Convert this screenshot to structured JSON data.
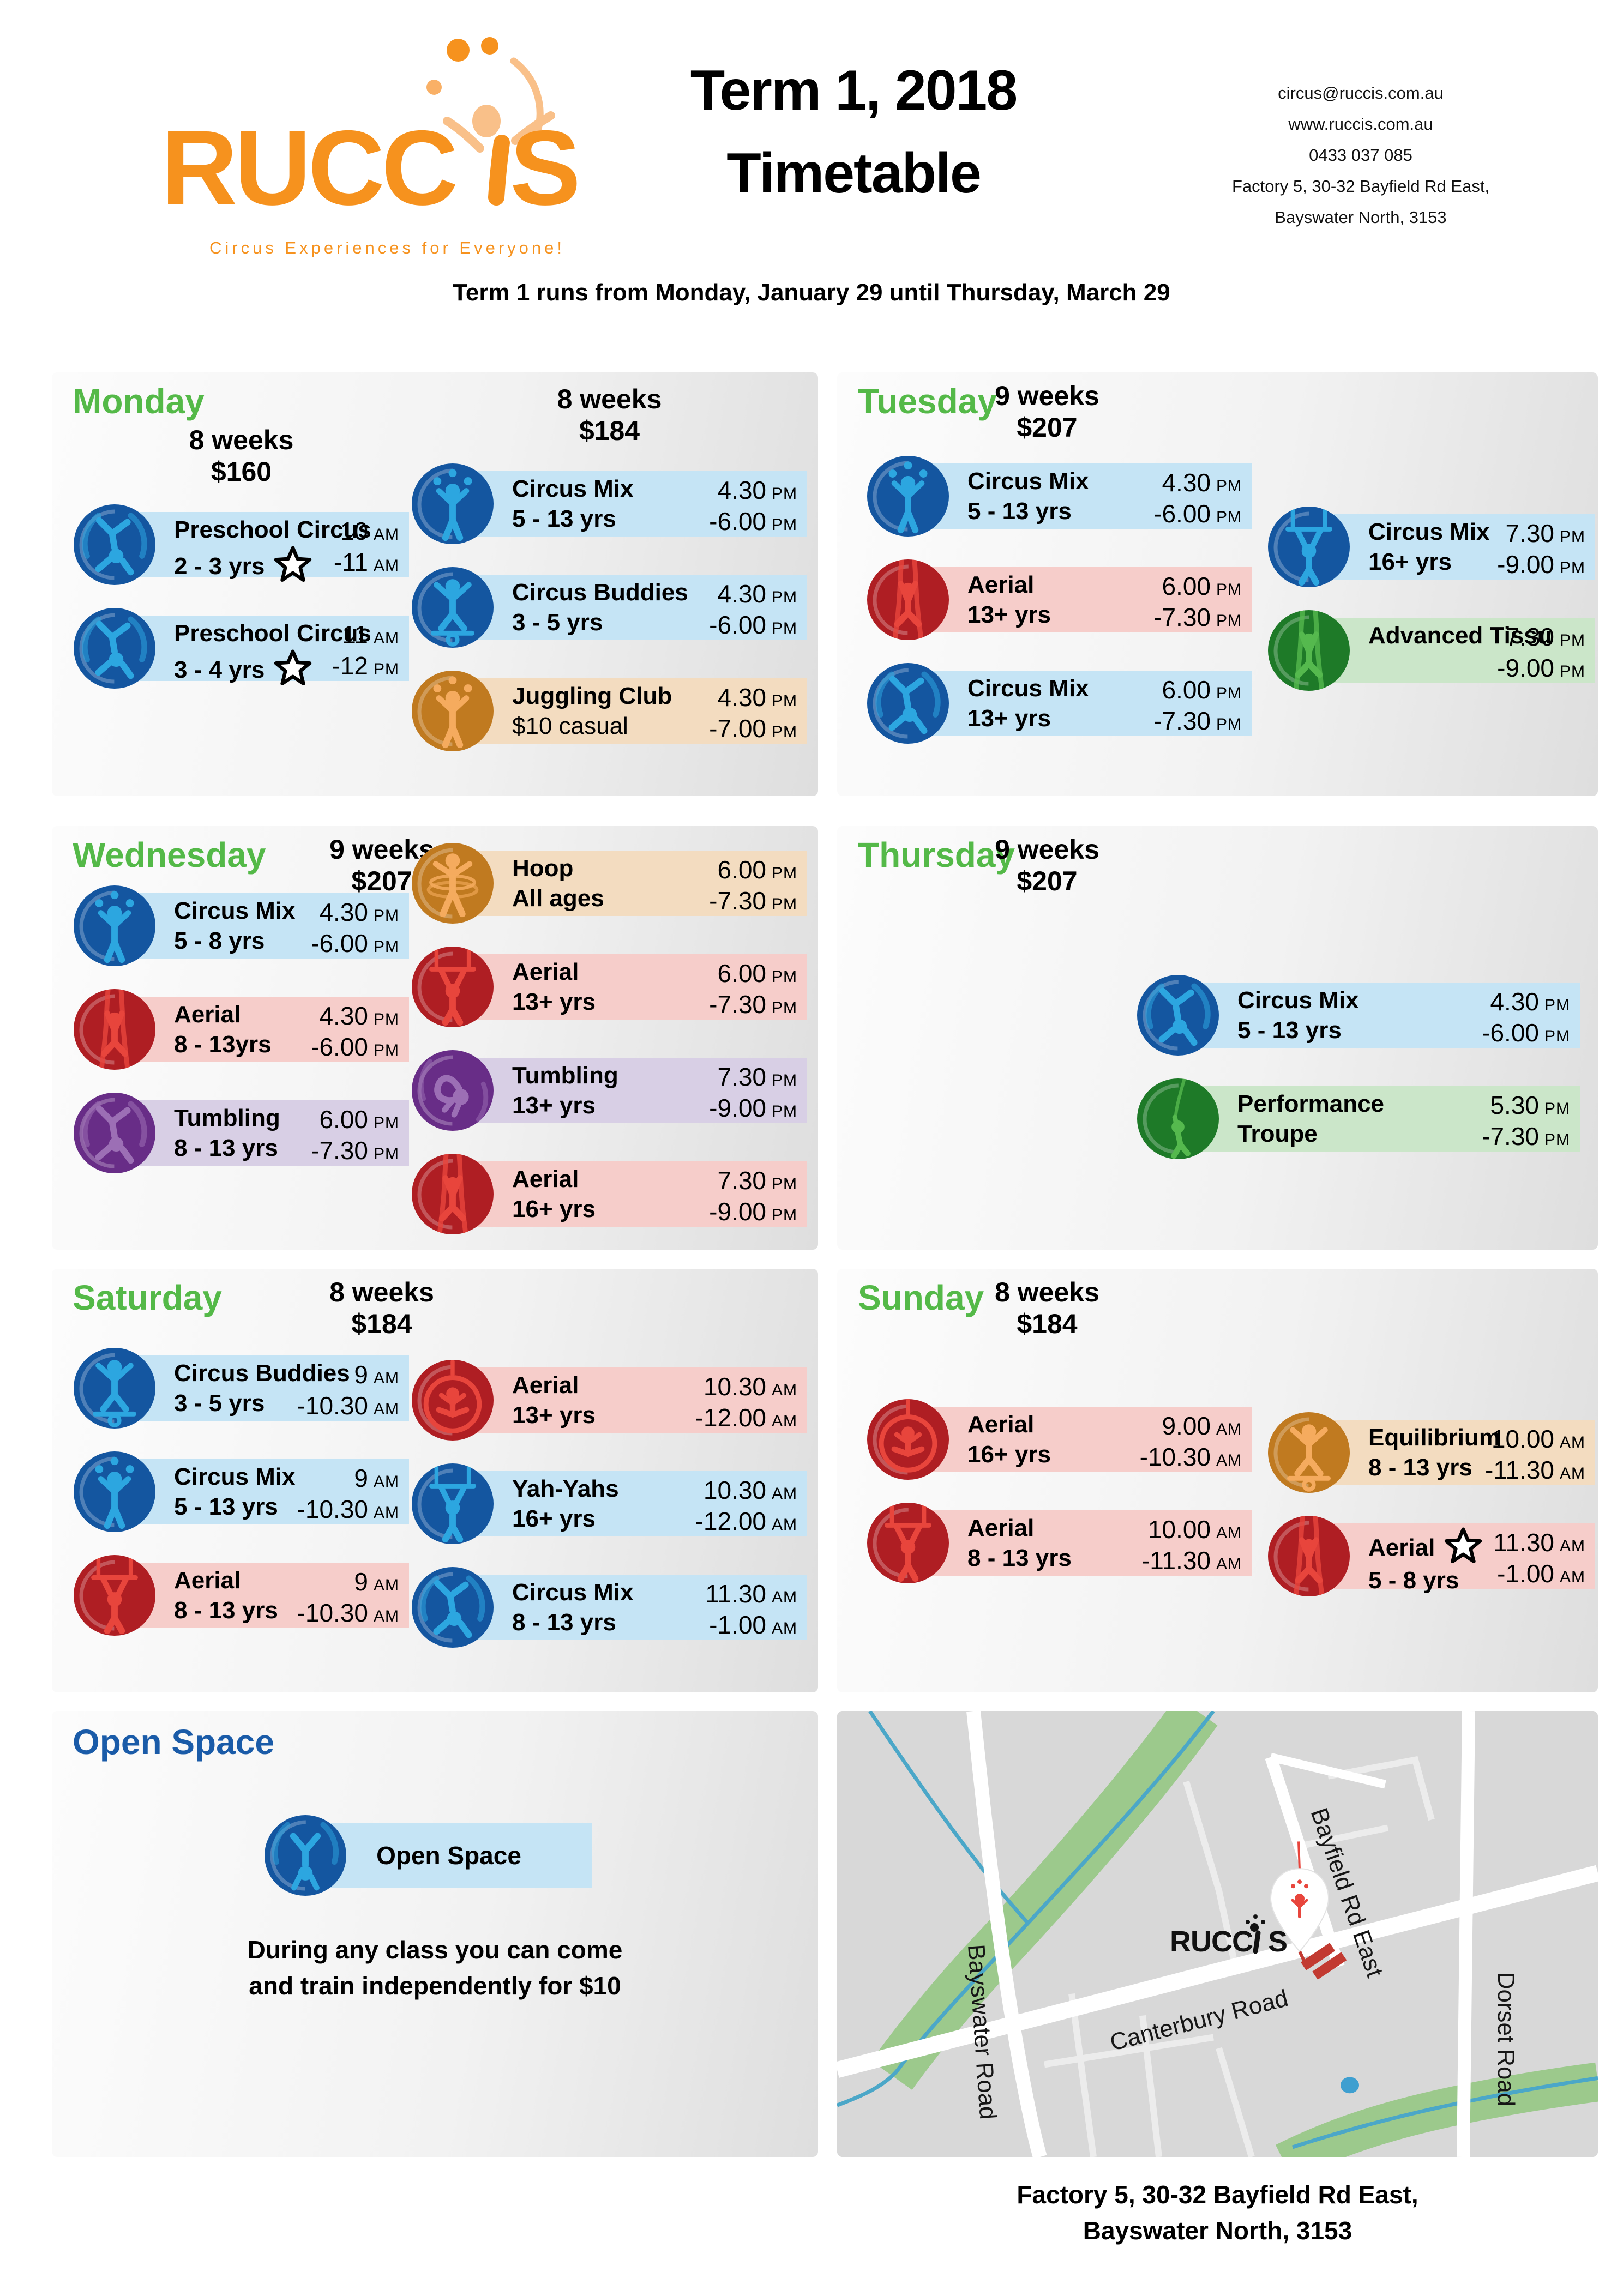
{
  "header": {
    "logo_text_left": "RUCC",
    "logo_text_right": "S",
    "logo_full": "RUCCIS",
    "tagline": "Circus Experiences for Everyone!",
    "title_line1": "Term 1, 2018",
    "title_line2": "Timetable",
    "contact_lines": [
      "circus@ruccis.com.au",
      "www.ruccis.com.au",
      "0433 037 085",
      "Factory 5, 30-32 Bayfield Rd East,",
      "Bayswater North, 3153"
    ],
    "subtitle": "Term 1 runs from Monday, January 29 until Thursday, March 29"
  },
  "days": [
    {
      "name": "Monday",
      "columns": [
        {
          "header": {
            "duration": "8 weeks",
            "price": "$160"
          },
          "classes": [
            {
              "icon": "cartwheel-icon",
              "theme": "blue",
              "title": "Preschool Circus",
              "subtitle": "2 - 3 yrs",
              "star": "subtitle",
              "times": [
                {
                  "t": "10",
                  "ap": "AM"
                },
                {
                  "t": "-11",
                  "ap": "AM"
                }
              ]
            },
            {
              "icon": "cartwheel-icon",
              "theme": "blue",
              "title": "Preschool Circus",
              "subtitle": "3 - 4 yrs",
              "star": "subtitle",
              "times": [
                {
                  "t": "11",
                  "ap": "AM"
                },
                {
                  "t": "-12",
                  "ap": "PM"
                }
              ]
            }
          ]
        },
        {
          "header": {
            "duration": "8 weeks",
            "price": "$184"
          },
          "classes": [
            {
              "icon": "juggler-icon",
              "theme": "blue",
              "title": "Circus Mix",
              "subtitle": "5 - 13 yrs",
              "times": [
                {
                  "t": "4.30",
                  "ap": "PM"
                },
                {
                  "t": "-6.00",
                  "ap": "PM"
                }
              ]
            },
            {
              "icon": "balance-icon",
              "theme": "blue",
              "title": "Circus Buddies",
              "subtitle": "3 - 5 yrs",
              "times": [
                {
                  "t": "4.30",
                  "ap": "PM"
                },
                {
                  "t": "-6.00",
                  "ap": "PM"
                }
              ]
            },
            {
              "icon": "juggler-icon",
              "theme": "orange",
              "title": "Juggling Club",
              "subtitle": "$10 casual",
              "sub_light": true,
              "times": [
                {
                  "t": "4.30",
                  "ap": "PM"
                },
                {
                  "t": "-7.00",
                  "ap": "PM"
                }
              ]
            }
          ]
        }
      ]
    },
    {
      "name": "Tuesday",
      "header": {
        "duration": "9 weeks",
        "price": "$207"
      },
      "columns": [
        {
          "classes": [
            {
              "icon": "juggler-icon",
              "theme": "blue",
              "title": "Circus Mix",
              "subtitle": "5 - 13 yrs",
              "times": [
                {
                  "t": "4.30",
                  "ap": "PM"
                },
                {
                  "t": "-6.00",
                  "ap": "PM"
                }
              ]
            },
            {
              "icon": "silks-icon",
              "theme": "red",
              "title": "Aerial",
              "subtitle": "13+ yrs",
              "times": [
                {
                  "t": "6.00",
                  "ap": "PM"
                },
                {
                  "t": "-7.30",
                  "ap": "PM"
                }
              ]
            },
            {
              "icon": "cartwheel-icon",
              "theme": "blue",
              "title": "Circus Mix",
              "subtitle": "13+ yrs",
              "times": [
                {
                  "t": "6.00",
                  "ap": "PM"
                },
                {
                  "t": "-7.30",
                  "ap": "PM"
                }
              ]
            }
          ]
        },
        {
          "classes": [
            {
              "icon": "trapeze-icon",
              "theme": "blue",
              "title": "Circus Mix",
              "subtitle": "16+ yrs",
              "times": [
                {
                  "t": "7.30",
                  "ap": "PM"
                },
                {
                  "t": "-9.00",
                  "ap": "PM"
                }
              ]
            },
            {
              "icon": "silks-icon",
              "theme": "green",
              "title": "Advanced Tissu",
              "times": [
                {
                  "t": "7.30",
                  "ap": "PM"
                },
                {
                  "t": "-9.00",
                  "ap": "PM"
                }
              ]
            }
          ]
        }
      ]
    },
    {
      "name": "Wednesday",
      "header": {
        "duration": "9 weeks",
        "price": "$207"
      },
      "columns": [
        {
          "classes": [
            {
              "icon": "juggler-icon",
              "theme": "blue",
              "title": "Circus Mix",
              "subtitle": "5 - 8 yrs",
              "times": [
                {
                  "t": "4.30",
                  "ap": "PM"
                },
                {
                  "t": "-6.00",
                  "ap": "PM"
                }
              ]
            },
            {
              "icon": "silks-icon",
              "theme": "red",
              "title": "Aerial",
              "subtitle": "8 - 13yrs",
              "times": [
                {
                  "t": "4.30",
                  "ap": "PM"
                },
                {
                  "t": "-6.00",
                  "ap": "PM"
                }
              ]
            },
            {
              "icon": "cartwheel-icon",
              "theme": "purple",
              "title": "Tumbling",
              "subtitle": "8 - 13 yrs",
              "times": [
                {
                  "t": "6.00",
                  "ap": "PM"
                },
                {
                  "t": "-7.30",
                  "ap": "PM"
                }
              ]
            }
          ]
        },
        {
          "classes": [
            {
              "icon": "hoop-icon",
              "theme": "orange",
              "title": "Hoop",
              "subtitle": "All ages",
              "times": [
                {
                  "t": "6.00",
                  "ap": "PM"
                },
                {
                  "t": "-7.30",
                  "ap": "PM"
                }
              ]
            },
            {
              "icon": "trapeze-icon",
              "theme": "red",
              "title": "Aerial",
              "subtitle": "13+ yrs",
              "times": [
                {
                  "t": "6.00",
                  "ap": "PM"
                },
                {
                  "t": "-7.30",
                  "ap": "PM"
                }
              ]
            },
            {
              "icon": "tumble-icon",
              "theme": "purple",
              "title": "Tumbling",
              "subtitle": "13+ yrs",
              "times": [
                {
                  "t": "7.30",
                  "ap": "PM"
                },
                {
                  "t": "-9.00",
                  "ap": "PM"
                }
              ]
            },
            {
              "icon": "silks-icon",
              "theme": "red",
              "title": "Aerial",
              "subtitle": "16+ yrs",
              "times": [
                {
                  "t": "7.30",
                  "ap": "PM"
                },
                {
                  "t": "-9.00",
                  "ap": "PM"
                }
              ]
            }
          ]
        }
      ]
    },
    {
      "name": "Thursday",
      "header": {
        "duration": "9 weeks",
        "price": "$207"
      },
      "columns": [
        {
          "classes": [
            {
              "icon": "cartwheel-icon",
              "theme": "blue",
              "title": "Circus Mix",
              "subtitle": "5 - 13 yrs",
              "times": [
                {
                  "t": "4.30",
                  "ap": "PM"
                },
                {
                  "t": "-6.00",
                  "ap": "PM"
                }
              ]
            },
            {
              "icon": "rope-swing-icon",
              "theme": "green",
              "title": "Performance",
              "subtitle": "Troupe",
              "times": [
                {
                  "t": "5.30",
                  "ap": "PM"
                },
                {
                  "t": "-7.30",
                  "ap": "PM"
                }
              ]
            }
          ]
        }
      ]
    },
    {
      "name": "Saturday",
      "header": {
        "duration": "8 weeks",
        "price": "$184"
      },
      "columns": [
        {
          "classes": [
            {
              "icon": "balance-icon",
              "theme": "blue",
              "title": "Circus Buddies",
              "subtitle": "3 - 5 yrs",
              "times": [
                {
                  "t": "9",
                  "ap": "AM"
                },
                {
                  "t": "-10.30",
                  "ap": "AM"
                }
              ]
            },
            {
              "icon": "juggler-icon",
              "theme": "blue",
              "title": "Circus Mix",
              "subtitle": "5 - 13 yrs",
              "times": [
                {
                  "t": "9",
                  "ap": "AM"
                },
                {
                  "t": "-10.30",
                  "ap": "AM"
                }
              ]
            },
            {
              "icon": "trapeze-icon",
              "theme": "red",
              "title": "Aerial",
              "subtitle": "8 - 13 yrs",
              "times": [
                {
                  "t": "9",
                  "ap": "AM"
                },
                {
                  "t": "-10.30",
                  "ap": "AM"
                }
              ]
            }
          ]
        },
        {
          "classes": [
            {
              "icon": "lyra-icon",
              "theme": "red",
              "title": "Aerial",
              "subtitle": "13+ yrs",
              "times": [
                {
                  "t": "10.30",
                  "ap": "AM"
                },
                {
                  "t": "-12.00",
                  "ap": "AM"
                }
              ]
            },
            {
              "icon": "trapeze-icon",
              "theme": "blue",
              "title": "Yah-Yahs",
              "subtitle": "16+ yrs",
              "times": [
                {
                  "t": "10.30",
                  "ap": "AM"
                },
                {
                  "t": "-12.00",
                  "ap": "AM"
                }
              ]
            },
            {
              "icon": "cartwheel-icon",
              "theme": "blue",
              "title": "Circus Mix",
              "subtitle": "8 - 13 yrs",
              "times": [
                {
                  "t": "11.30",
                  "ap": "AM"
                },
                {
                  "t": "-1.00",
                  "ap": "AM"
                }
              ]
            }
          ]
        }
      ]
    },
    {
      "name": "Sunday",
      "header": {
        "duration": "8 weeks",
        "price": "$184"
      },
      "columns": [
        {
          "classes": [
            {
              "icon": "lyra-icon",
              "theme": "red",
              "title": "Aerial",
              "subtitle": "16+ yrs",
              "times": [
                {
                  "t": "9.00",
                  "ap": "AM"
                },
                {
                  "t": "-10.30",
                  "ap": "AM"
                }
              ]
            },
            {
              "icon": "trapeze-icon",
              "theme": "red",
              "title": "Aerial",
              "subtitle": "8 - 13 yrs",
              "times": [
                {
                  "t": "10.00",
                  "ap": "AM"
                },
                {
                  "t": "-11.30",
                  "ap": "AM"
                }
              ]
            }
          ]
        },
        {
          "classes": [
            {
              "icon": "balance-icon",
              "theme": "orange",
              "title": "Equilibrium",
              "subtitle": "8 - 13 yrs",
              "times": [
                {
                  "t": "10.00",
                  "ap": "AM"
                },
                {
                  "t": "-11.30",
                  "ap": "AM"
                }
              ]
            },
            {
              "icon": "silks-icon",
              "theme": "red",
              "title": "Aerial",
              "subtitle": "5 - 8 yrs",
              "star": "title",
              "times": [
                {
                  "t": "11.30",
                  "ap": "AM"
                },
                {
                  "t": "-1.00",
                  "ap": "AM"
                }
              ]
            }
          ]
        }
      ]
    }
  ],
  "open_space": {
    "title": "Open Space",
    "label": "Open Space",
    "desc_line1": "During any class you can come",
    "desc_line2": "and train independently for $10"
  },
  "map": {
    "roads": [
      "Bayswater Road",
      "Canterbury Road",
      "Dorset Road",
      "Bayfield Rd East"
    ],
    "logo_left": "RUCC",
    "logo_right": "S"
  },
  "footer": {
    "line1": "Factory 5, 30-32 Bayfield Rd East,",
    "line2": "Bayswater North, 3153"
  },
  "palette": {
    "day_heading_green": "#54B948",
    "open_space_blue": "#1A5BA8",
    "logo_orange": "#F6921E",
    "blue_circle": "#1456A0",
    "blue_figure": "#2CA6E0",
    "blue_bar": "#C5E4F5",
    "red_circle": "#AF1E23",
    "red_figure": "#E8453C",
    "red_bar": "#F6CDCA",
    "orange_circle": "#C07A20",
    "orange_figure": "#F5AB5E",
    "orange_bar": "#F3DCC0",
    "purple_circle": "#682D87",
    "purple_figure": "#9C6FB5",
    "purple_bar": "#D8CFE5",
    "green_circle": "#1E7A28",
    "green_figure": "#55B94E",
    "green_bar": "#CBE6C9"
  }
}
